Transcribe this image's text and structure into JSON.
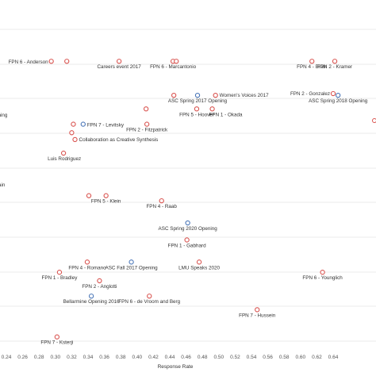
{
  "chart_data": {
    "type": "scatter",
    "title": "",
    "xlabel": "Response Rate",
    "ylabel": "",
    "xlim": [
      0.2,
      0.7
    ],
    "xticks": [
      0.24,
      0.26,
      0.28,
      0.3,
      0.32,
      0.34,
      0.36,
      0.38,
      0.4,
      0.42,
      0.44,
      0.46,
      0.48,
      0.5,
      0.52,
      0.54,
      0.56,
      0.58,
      0.6,
      0.62,
      0.64
    ],
    "xtick_labels": [
      "0.24",
      "0.26",
      "0.28",
      "0.30",
      "0.32",
      "0.34",
      "0.36",
      "0.38",
      "0.40",
      "0.42",
      "0.44",
      "0.46",
      "0.48",
      "0.50",
      "0.52",
      "0.54",
      "0.56",
      "0.58",
      "0.60",
      "0.62",
      "0.64"
    ],
    "y_axis_labels_shown": false,
    "grid": "horizontal",
    "colors": {
      "red": "#d9534f",
      "blue": "#4a76b8"
    },
    "points": [
      {
        "label": "FPN 6 - Anderson",
        "x": 0.295,
        "y": 16.4,
        "color": "red"
      },
      {
        "label": "",
        "x": 0.314,
        "y": 16.4,
        "color": "red"
      },
      {
        "label": "Careers event 2017",
        "x": 0.378,
        "y": 16.4,
        "color": "red"
      },
      {
        "label": "FPN 6 - Marcantonio",
        "x": 0.444,
        "y": 16.4,
        "color": "red"
      },
      {
        "label": "",
        "x": 0.448,
        "y": 16.4,
        "color": "red"
      },
      {
        "label": "FPN 4 - Brain",
        "x": 0.614,
        "y": 16.4,
        "color": "red"
      },
      {
        "label": "FPN 2 - Kramer",
        "x": 0.642,
        "y": 16.4,
        "color": "red"
      },
      {
        "label": "",
        "x": 0.445,
        "y": 14.4,
        "color": "red"
      },
      {
        "label": "ASC Spring 2017 Opening",
        "x": 0.474,
        "y": 14.4,
        "color": "blue"
      },
      {
        "label": "Women's Voices 2017",
        "x": 0.496,
        "y": 14.4,
        "color": "red"
      },
      {
        "label": "FPN 2 - Gonzalez",
        "x": 0.64,
        "y": 14.5,
        "color": "red"
      },
      {
        "label": "ASC Spring 2018 Opening",
        "x": 0.646,
        "y": 14.4,
        "color": "blue"
      },
      {
        "label": "FPN 5 - Hoover",
        "x": 0.473,
        "y": 13.6,
        "color": "red"
      },
      {
        "label": "FPN 1 - Okada",
        "x": 0.492,
        "y": 13.6,
        "color": "red"
      },
      {
        "label": "",
        "x": 0.411,
        "y": 13.6,
        "color": "red"
      },
      {
        "label": "FPN 7 - Levitsky",
        "x": 0.334,
        "y": 12.7,
        "color": "blue"
      },
      {
        "label": "",
        "x": 0.322,
        "y": 12.7,
        "color": "red"
      },
      {
        "label": "",
        "x": 0.32,
        "y": 12.2,
        "color": "red"
      },
      {
        "label": "FPN 2 - Fitzpatrick",
        "x": 0.412,
        "y": 12.7,
        "color": "red"
      },
      {
        "label": "Collaboration as Creative Synthesis",
        "x": 0.324,
        "y": 11.8,
        "color": "red"
      },
      {
        "label": "Luis Rodriguez",
        "x": 0.31,
        "y": 11.0,
        "color": "red"
      },
      {
        "label": "",
        "x": 0.341,
        "y": 8.5,
        "color": "red"
      },
      {
        "label": "FPN 5 - Klein",
        "x": 0.362,
        "y": 8.5,
        "color": "red"
      },
      {
        "label": "FPN 4 - Raab",
        "x": 0.43,
        "y": 8.2,
        "color": "red"
      },
      {
        "label": "ASC Spring 2020 Opening",
        "x": 0.462,
        "y": 6.9,
        "color": "blue"
      },
      {
        "label": "FPN 1 - Gabhard",
        "x": 0.461,
        "y": 5.9,
        "color": "red"
      },
      {
        "label": "FPN 4 - Romano",
        "x": 0.339,
        "y": 4.6,
        "color": "red"
      },
      {
        "label": "ASC Fall 2017 Opening",
        "x": 0.393,
        "y": 4.6,
        "color": "blue"
      },
      {
        "label": "LMU Speaks 2020",
        "x": 0.476,
        "y": 4.6,
        "color": "red"
      },
      {
        "label": "FPN 1 - Bradley",
        "x": 0.305,
        "y": 4.0,
        "color": "red"
      },
      {
        "label": "FPN 2 - Anglotti",
        "x": 0.354,
        "y": 3.5,
        "color": "red"
      },
      {
        "label": "FPN 6 - Younglich",
        "x": 0.627,
        "y": 4.0,
        "color": "red"
      },
      {
        "label": "Bellarmine Opening 2016",
        "x": 0.344,
        "y": 2.6,
        "color": "blue"
      },
      {
        "label": "FPN 6 - de Vroom and Berg",
        "x": 0.415,
        "y": 2.6,
        "color": "red"
      },
      {
        "label": "FPN 7 - Hussein",
        "x": 0.547,
        "y": 1.8,
        "color": "red"
      },
      {
        "label": "FPN 7 - Ksterji",
        "x": 0.302,
        "y": 0.2,
        "color": "red"
      }
    ],
    "edge_label_fragments": [
      "ening",
      "ain"
    ]
  }
}
